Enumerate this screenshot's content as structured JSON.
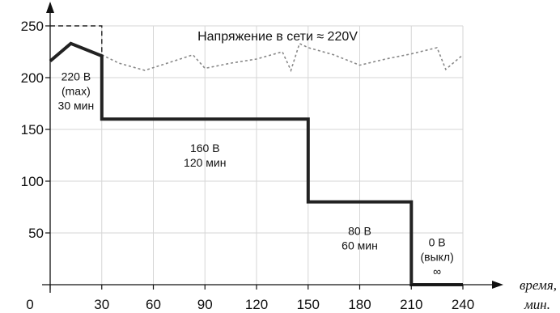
{
  "chart_data": {
    "type": "line",
    "title": "",
    "xlabel": "время,",
    "xlabel_line2": "мин.",
    "ylabel": "",
    "xlim": [
      0,
      240
    ],
    "ylim": [
      0,
      250
    ],
    "grid": true,
    "x_ticks": [
      0,
      30,
      60,
      90,
      120,
      150,
      180,
      210,
      240
    ],
    "x_tick_labels": [
      "0",
      "30",
      "60",
      "90",
      "120",
      "150",
      "180",
      "210",
      "240"
    ],
    "y_ticks": [
      50,
      100,
      150,
      200,
      250
    ],
    "y_tick_labels": [
      "50",
      "100",
      "150",
      "200",
      "250"
    ],
    "annotation": "Напряжение в сети ≈ 220V",
    "series": [
      {
        "role": "mains",
        "style": "dotted",
        "color": "#888888",
        "x": [
          30,
          40,
          55,
          70,
          83,
          90,
          105,
          120,
          135,
          140,
          145,
          150,
          165,
          180,
          195,
          210,
          225,
          230,
          240
        ],
        "y": [
          222,
          214,
          207,
          215,
          222,
          209,
          214,
          218,
          225,
          207,
          233,
          229,
          222,
          212,
          218,
          223,
          229,
          208,
          222
        ]
      },
      {
        "role": "output",
        "style": "solid",
        "color": "#222222",
        "x": [
          0,
          12,
          30,
          30,
          150,
          150,
          210,
          210,
          240
        ],
        "y": [
          216,
          233,
          221,
          160,
          160,
          80,
          80,
          0,
          0
        ]
      },
      {
        "role": "max-limit",
        "style": "dashed",
        "color": "#222222",
        "x": [
          0,
          30,
          30
        ],
        "y": [
          250,
          250,
          222
        ]
      }
    ],
    "segment_labels": [
      {
        "x": 15,
        "y": 187,
        "lines": [
          "220 В",
          "(max)",
          "30 мин"
        ]
      },
      {
        "x": 90,
        "y": 125,
        "lines": [
          "160 В",
          "120 мин"
        ]
      },
      {
        "x": 180,
        "y": 45,
        "lines": [
          "80 В",
          "60 мин"
        ]
      },
      {
        "x": 225,
        "y": 27,
        "lines": [
          "0 В",
          "(выкл)",
          "∞"
        ]
      }
    ]
  }
}
